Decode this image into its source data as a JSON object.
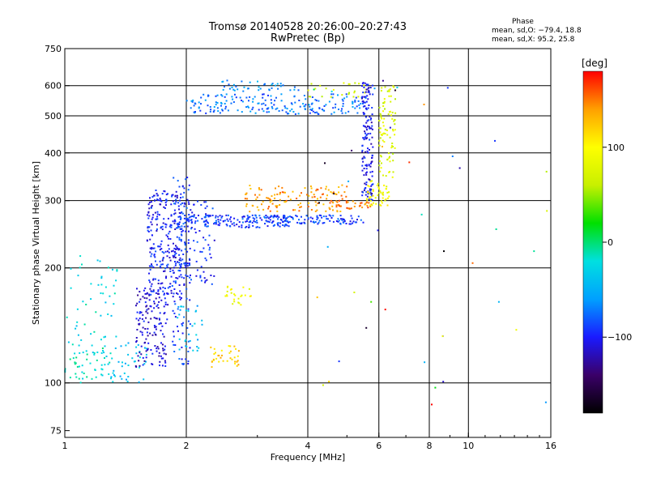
{
  "title": "Tromsø 20140528 20:26:00–20:27:43",
  "subtitle": "RwPretec (Bp)",
  "phase_stats": {
    "heading": "Phase",
    "line_o": "mean, sd,O: −79.4, 18.8",
    "line_x": "mean, sd,X:  95.2, 25.8"
  },
  "colorbar": {
    "label": "[deg]",
    "ticks": [
      {
        "value": 100,
        "label": "100"
      },
      {
        "value": 0,
        "label": "0"
      },
      {
        "value": -100,
        "label": "−100"
      }
    ],
    "range": [
      -180,
      180
    ],
    "stops": [
      "#000000",
      "#3a0068",
      "#1a1aff",
      "#00a0ff",
      "#00e0e0",
      "#00e000",
      "#c8f000",
      "#ffff00",
      "#ffa000",
      "#ff0000"
    ]
  },
  "chart_data": {
    "type": "scatter",
    "title": "Tromsø 20140528 20:26:00–20:27:43",
    "subtitle": "RwPretec (Bp)",
    "xlabel": "Frequency [MHz]",
    "ylabel": "Stationary phase Virtual Height [km]",
    "xscale": "log",
    "yscale": "log",
    "xlim": [
      1,
      16
    ],
    "ylim": [
      72,
      750
    ],
    "x_ticks": [
      {
        "value": 1,
        "label": "1"
      },
      {
        "value": 2,
        "label": "2"
      },
      {
        "value": 4,
        "label": "4"
      },
      {
        "value": 6,
        "label": "6"
      },
      {
        "value": 8,
        "label": "8"
      },
      {
        "value": 10,
        "label": "10"
      },
      {
        "value": 16,
        "label": "16"
      }
    ],
    "y_ticks": [
      {
        "value": 75,
        "label": "75"
      },
      {
        "value": 100,
        "label": "100"
      },
      {
        "value": 200,
        "label": "200"
      },
      {
        "value": 300,
        "label": "300"
      },
      {
        "value": 400,
        "label": "400"
      },
      {
        "value": 500,
        "label": "500"
      },
      {
        "value": 600,
        "label": "600"
      },
      {
        "value": 750,
        "label": "750"
      }
    ],
    "grid": true,
    "gridlines_x": [
      2,
      4,
      6,
      8,
      10
    ],
    "gridlines_y": [
      100,
      200,
      300,
      400,
      500,
      600
    ],
    "colorscale": "phase [deg], -180 to 180",
    "clusters": [
      {
        "f": [
          1.0,
          1.3
        ],
        "h": [
          100,
          130
        ],
        "phase": -20,
        "n": 60
      },
      {
        "f": [
          1.0,
          1.35
        ],
        "h": [
          130,
          220
        ],
        "phase": -25,
        "n": 45
      },
      {
        "f": [
          1.3,
          1.6
        ],
        "h": [
          100,
          130
        ],
        "phase": -40,
        "n": 40
      },
      {
        "f": [
          1.5,
          1.8
        ],
        "h": [
          110,
          180
        ],
        "phase": -110,
        "n": 150
      },
      {
        "f": [
          1.6,
          1.95
        ],
        "h": [
          170,
          320
        ],
        "phase": -100,
        "n": 260
      },
      {
        "f": [
          1.85,
          2.05
        ],
        "h": [
          110,
          350
        ],
        "phase": -90,
        "n": 110
      },
      {
        "f": [
          1.9,
          2.35
        ],
        "h": [
          180,
          300
        ],
        "phase": -95,
        "n": 90
      },
      {
        "f": [
          1.9,
          2.2
        ],
        "h": [
          120,
          160
        ],
        "phase": -45,
        "n": 30
      },
      {
        "f": [
          1.9,
          3.6
        ],
        "h": [
          255,
          275
        ],
        "phase": -90,
        "n": 170
      },
      {
        "f": [
          3.2,
          5.5
        ],
        "h": [
          260,
          275
        ],
        "phase": -90,
        "n": 100
      },
      {
        "f": [
          2.0,
          5.6
        ],
        "h": [
          505,
          570
        ],
        "phase": -75,
        "n": 200
      },
      {
        "f": [
          2.4,
          3.8
        ],
        "h": [
          580,
          620
        ],
        "phase": -60,
        "n": 40
      },
      {
        "f": [
          4.0,
          5.6
        ],
        "h": [
          560,
          610
        ],
        "phase": 70,
        "n": 25
      },
      {
        "f": [
          2.8,
          5.0
        ],
        "h": [
          280,
          330
        ],
        "phase": 140,
        "n": 120
      },
      {
        "f": [
          4.5,
          5.8
        ],
        "h": [
          285,
          300
        ],
        "phase": 150,
        "n": 40
      },
      {
        "f": [
          5.45,
          5.8
        ],
        "h": [
          300,
          620
        ],
        "phase": -105,
        "n": 150
      },
      {
        "f": [
          5.6,
          6.4
        ],
        "h": [
          290,
          340
        ],
        "phase": 90,
        "n": 50
      },
      {
        "f": [
          6.0,
          6.6
        ],
        "h": [
          340,
          620
        ],
        "phase": 75,
        "n": 90
      },
      {
        "f": [
          2.3,
          2.7
        ],
        "h": [
          110,
          125
        ],
        "phase": 120,
        "n": 35
      },
      {
        "f": [
          2.5,
          2.9
        ],
        "h": [
          160,
          180
        ],
        "phase": 90,
        "n": 25
      },
      {
        "f": [
          4.0,
          16
        ],
        "h": [
          80,
          640
        ],
        "phase": 0,
        "n": 45,
        "sparse": true
      }
    ]
  }
}
